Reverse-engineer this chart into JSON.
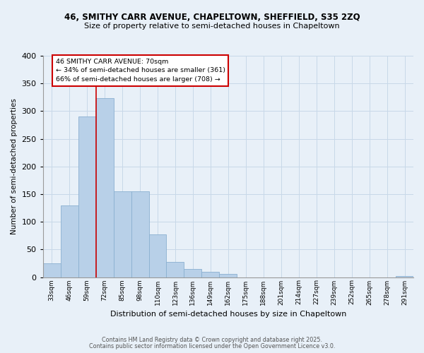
{
  "title_line1": "46, SMITHY CARR AVENUE, CHAPELTOWN, SHEFFIELD, S35 2ZQ",
  "title_line2": "Size of property relative to semi-detached houses in Chapeltown",
  "xlabel": "Distribution of semi-detached houses by size in Chapeltown",
  "ylabel": "Number of semi-detached properties",
  "categories": [
    "33sqm",
    "46sqm",
    "59sqm",
    "72sqm",
    "85sqm",
    "98sqm",
    "110sqm",
    "123sqm",
    "136sqm",
    "149sqm",
    "162sqm",
    "175sqm",
    "188sqm",
    "201sqm",
    "214sqm",
    "227sqm",
    "239sqm",
    "252sqm",
    "265sqm",
    "278sqm",
    "291sqm"
  ],
  "values": [
    25,
    130,
    290,
    323,
    155,
    155,
    77,
    27,
    15,
    10,
    6,
    0,
    0,
    0,
    0,
    0,
    0,
    0,
    0,
    0,
    2
  ],
  "bar_color": "#b8d0e8",
  "bar_edge_color": "#8ab0d0",
  "vline_x": 2.5,
  "annotation_text_line1": "46 SMITHY CARR AVENUE: 70sqm",
  "annotation_text_line2": "← 34% of semi-detached houses are smaller (361)",
  "annotation_text_line3": "66% of semi-detached houses are larger (708) →",
  "annotation_box_color": "#ffffff",
  "annotation_box_edge_color": "#cc0000",
  "vline_color": "#cc0000",
  "grid_color": "#c8d8e8",
  "background_color": "#e8f0f8",
  "plot_background": "#e8f0f8",
  "ylim": [
    0,
    400
  ],
  "yticks": [
    0,
    50,
    100,
    150,
    200,
    250,
    300,
    350,
    400
  ],
  "footer_line1": "Contains HM Land Registry data © Crown copyright and database right 2025.",
  "footer_line2": "Contains public sector information licensed under the Open Government Licence v3.0."
}
